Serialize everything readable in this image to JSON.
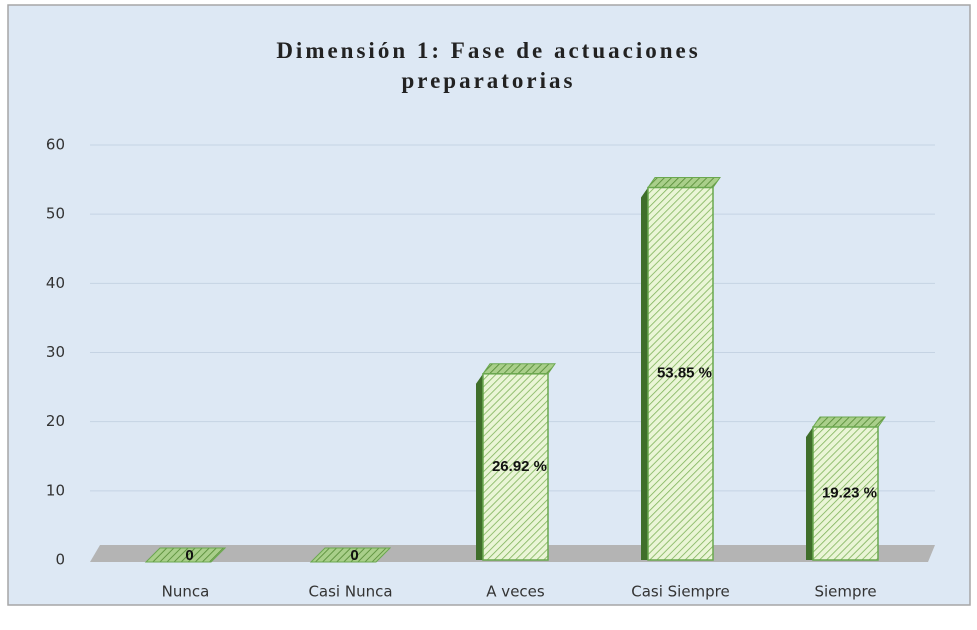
{
  "chart_data": {
    "type": "bar",
    "title": "Dimensión 1: Fase de actuaciones preparatorias",
    "categories": [
      "Nunca",
      "Casi Nunca",
      "A veces",
      "Casi Siempre",
      "Siempre"
    ],
    "values": [
      0,
      0,
      26.92,
      53.85,
      19.23
    ],
    "value_labels": [
      "0",
      "0",
      "26.92 %",
      "53.85 %",
      "19.23 %"
    ],
    "color": "#6aa84f",
    "ylim": [
      0,
      60
    ],
    "yticks": [
      0,
      10,
      20,
      30,
      40,
      50,
      60
    ],
    "grid": true
  }
}
